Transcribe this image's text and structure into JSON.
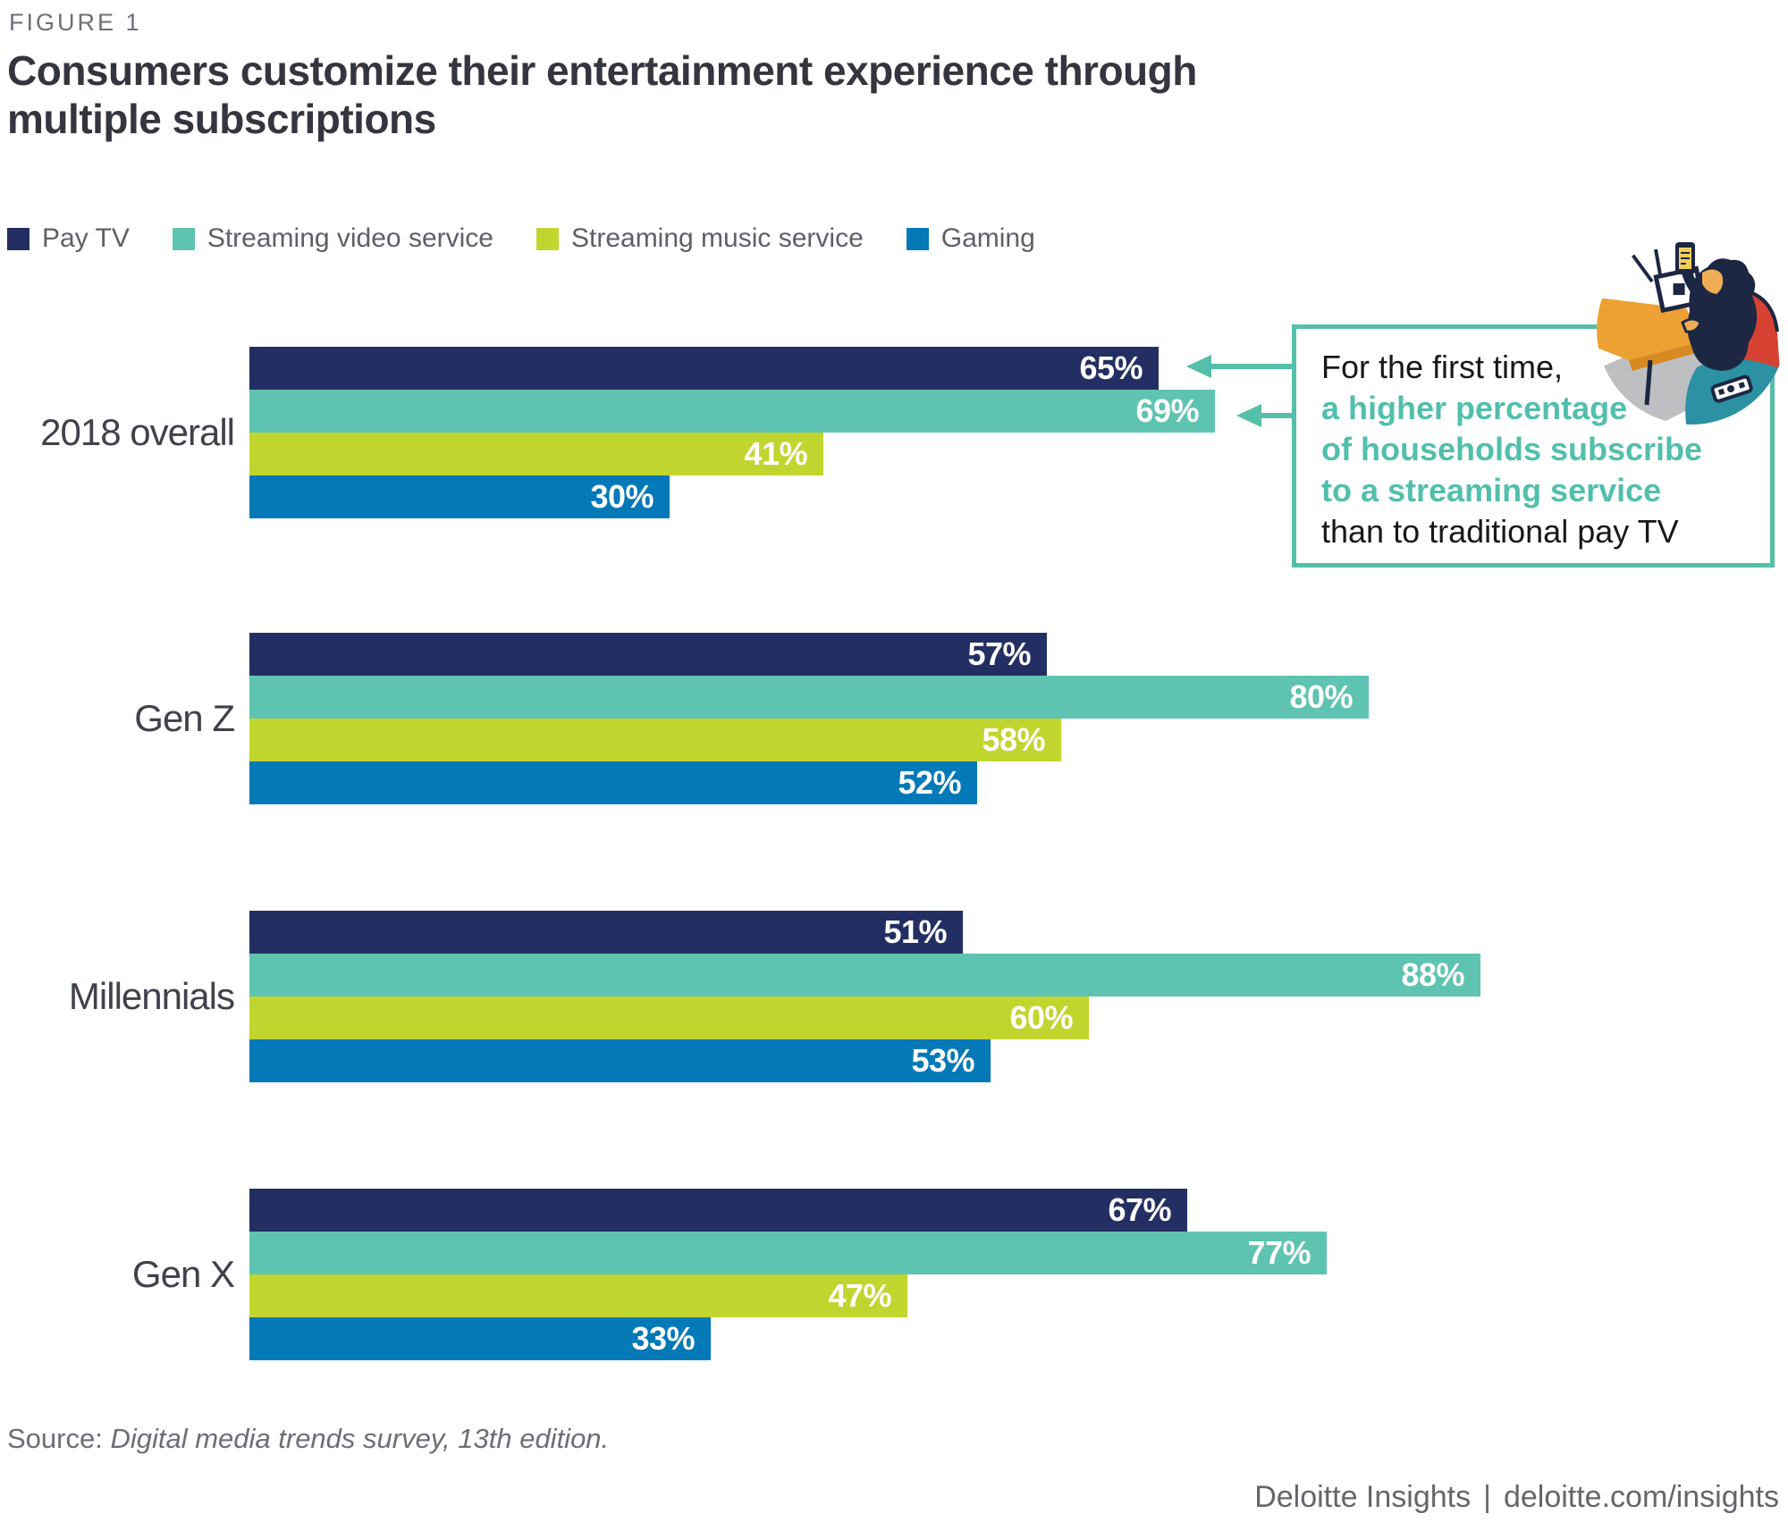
{
  "figure_label": "FIGURE 1",
  "title": {
    "line1": "Consumers customize their entertainment experience through",
    "line2": "multiple subscriptions"
  },
  "chart_data": {
    "type": "bar",
    "orientation": "horizontal",
    "categories": [
      "2018 overall",
      "Gen Z",
      "Millennials",
      "Gen X"
    ],
    "series": [
      {
        "name": "Pay TV",
        "color": "#232f63",
        "values": [
          65,
          57,
          51,
          67
        ]
      },
      {
        "name": "Streaming video service",
        "color": "#5fc3b1",
        "values": [
          69,
          80,
          88,
          77
        ]
      },
      {
        "name": "Streaming music service",
        "color": "#c1d52f",
        "values": [
          41,
          58,
          60,
          47
        ]
      },
      {
        "name": "Gaming",
        "color": "#0379b7",
        "values": [
          30,
          52,
          53,
          33
        ]
      }
    ],
    "value_suffix": "%",
    "xlim": [
      0,
      100
    ],
    "grid": false,
    "legend_position": "top",
    "value_labels": "inside-end, white"
  },
  "annotation": {
    "lines": [
      {
        "text": "For the first time,",
        "emphasis": false
      },
      {
        "text": "a higher percentage",
        "emphasis": true
      },
      {
        "text": "of households subscribe",
        "emphasis": true
      },
      {
        "text": "to a streaming service",
        "emphasis": true
      },
      {
        "text": "than to traditional pay TV",
        "emphasis": false
      }
    ],
    "arrow_targets": [
      "65%",
      "69%"
    ],
    "accent_color": "#55bfa9"
  },
  "illustration": {
    "name": "people-on-couch-with-devices-illustration"
  },
  "source": {
    "prefix": "Source: ",
    "text": "Digital media trends survey, 13th edition."
  },
  "footer": {
    "brand": "Deloitte Insights",
    "separator": "|",
    "link": "deloitte.com/insights"
  }
}
